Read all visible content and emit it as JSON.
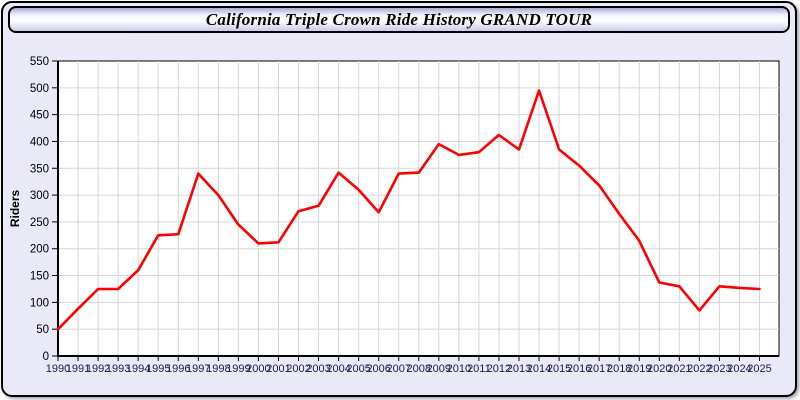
{
  "page": {
    "title": "California Triple Crown Ride History GRAND TOUR"
  },
  "colors": {
    "line": "#ff0000",
    "grid": "#d6d6d6",
    "plot_bg": "#ffffff",
    "plot_border": "#000000",
    "axis": "#000000",
    "x_tick_label": "#1c1c55",
    "y_tick_label": "#000000",
    "card_bg": "#e9e9f8"
  },
  "chart_data": {
    "type": "line",
    "title": "California Triple Crown Ride History GRAND TOUR",
    "xlabel": "",
    "ylabel": "Riders",
    "ylim": [
      0,
      550
    ],
    "ytick_step": 50,
    "grid": true,
    "legend_position": "none",
    "x": [
      1990,
      1991,
      1992,
      1993,
      1994,
      1995,
      1996,
      1997,
      1998,
      1999,
      2000,
      2001,
      2002,
      2003,
      2004,
      2005,
      2006,
      2007,
      2008,
      2009,
      2010,
      2011,
      2012,
      2013,
      2014,
      2015,
      2016,
      2017,
      2018,
      2019,
      2020,
      2021,
      2022,
      2023,
      2024,
      2025
    ],
    "series": [
      {
        "name": "Riders",
        "color": "#ff0000",
        "values": [
          50,
          88,
          125,
          125,
          160,
          225,
          227,
          340,
          300,
          245,
          210,
          212,
          270,
          280,
          342,
          310,
          268,
          340,
          342,
          395,
          375,
          380,
          412,
          385,
          495,
          385,
          355,
          318,
          265,
          215,
          137,
          130,
          85,
          130,
          127,
          125
        ]
      }
    ]
  }
}
